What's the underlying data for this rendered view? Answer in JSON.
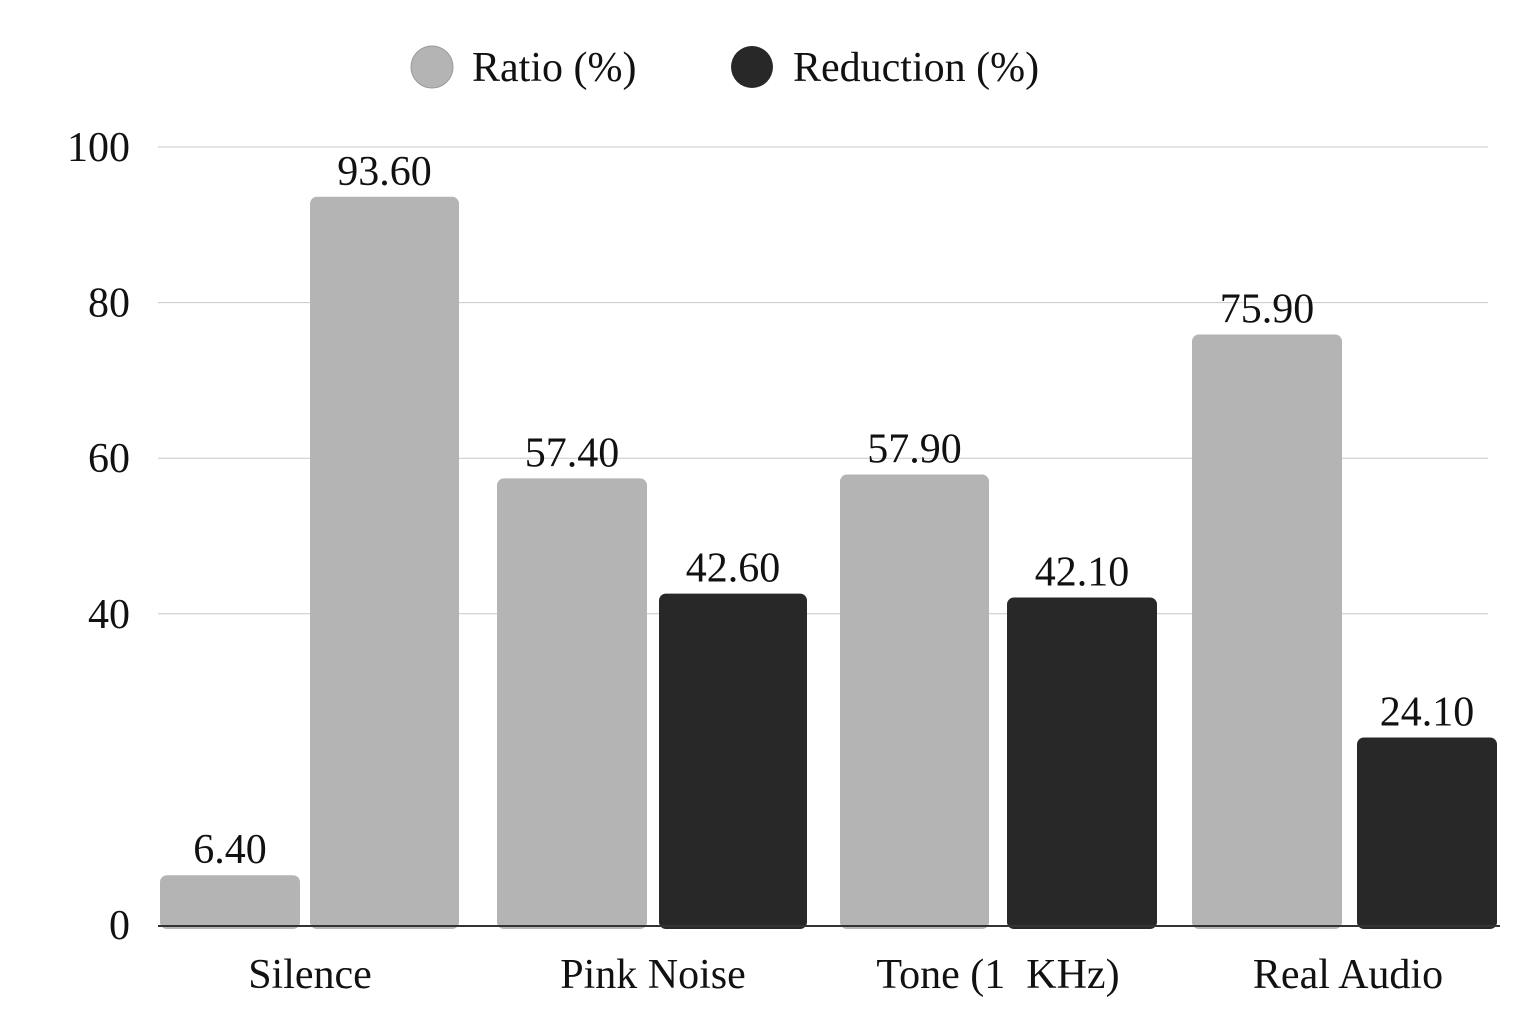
{
  "chart_data": {
    "type": "bar",
    "categories": [
      "Silence",
      "Pink Noise",
      "Tone (1  KHz)",
      "Real Audio"
    ],
    "series": [
      {
        "name": "Ratio (%)",
        "color": "#b4b4b4",
        "values": [
          6.4,
          57.4,
          57.9,
          75.9
        ],
        "labels": [
          "6.40",
          "57.40",
          "57.90",
          "75.90"
        ]
      },
      {
        "name": "Reduction (%)",
        "color": "#282828",
        "values": [
          93.6,
          42.6,
          42.1,
          24.1
        ],
        "labels": [
          "93.60",
          "42.60",
          "42.10",
          "24.10"
        ]
      }
    ],
    "bar_colors": [
      [
        "#b4b4b4",
        "#b4b4b4"
      ],
      [
        "#b4b4b4",
        "#282828"
      ],
      [
        "#b4b4b4",
        "#282828"
      ],
      [
        "#b4b4b4",
        "#282828"
      ]
    ],
    "yticks": [
      "0",
      "40",
      "60",
      "80",
      "100"
    ],
    "ytick_values": [
      0,
      40,
      60,
      80,
      100
    ],
    "ylim": [
      0,
      100
    ],
    "grid": true,
    "legend": "top-center",
    "title": "",
    "xlabel": "",
    "ylabel": ""
  }
}
